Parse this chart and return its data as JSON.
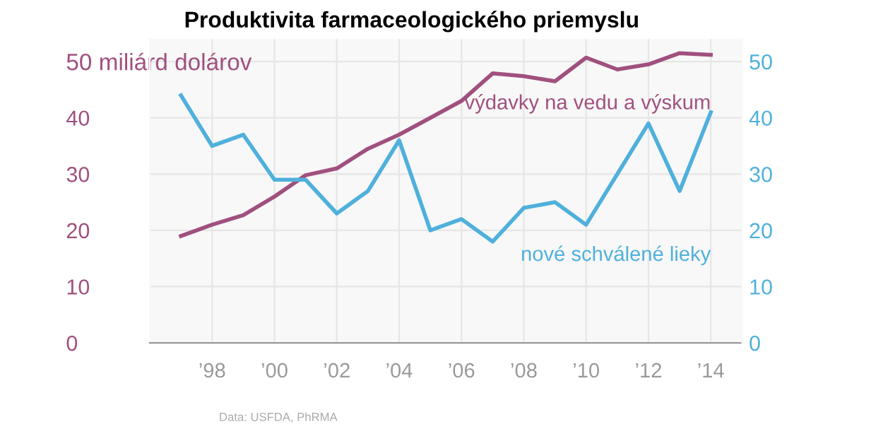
{
  "chart_data": {
    "type": "line",
    "title": "Produktivita farmaceologického priemyslu",
    "x": [
      1997,
      1998,
      1999,
      2000,
      2001,
      2002,
      2003,
      2004,
      2005,
      2006,
      2007,
      2008,
      2009,
      2010,
      2011,
      2012,
      2013,
      2014
    ],
    "series": [
      {
        "name": "výdavky na vedu a výskum",
        "color": "#a0507f",
        "values": [
          19,
          21,
          22.7,
          26,
          29.8,
          31,
          34.5,
          37,
          40,
          43,
          47.9,
          47.4,
          46.5,
          50.7,
          48.6,
          49.5,
          51.5,
          51.2
        ]
      },
      {
        "name": "nové schválené lieky",
        "color": "#4fb0dc",
        "axis": "y2",
        "values": [
          44,
          35,
          37,
          29,
          29,
          23,
          27,
          36,
          20,
          22,
          18,
          24,
          25,
          21,
          30,
          39,
          27,
          41
        ]
      }
    ],
    "xlim": [
      1996,
      2015
    ],
    "xticks": [
      {
        "value": 1998,
        "label": "’98"
      },
      {
        "value": 2000,
        "label": "’00"
      },
      {
        "value": 2002,
        "label": "’02"
      },
      {
        "value": 2004,
        "label": "’04"
      },
      {
        "value": 2006,
        "label": "’06"
      },
      {
        "value": 2008,
        "label": "’08"
      },
      {
        "value": 2010,
        "label": "’10"
      },
      {
        "value": 2012,
        "label": "’12"
      },
      {
        "value": 2014,
        "label": "’14"
      }
    ],
    "ylim": [
      0,
      54
    ],
    "yticks": [
      0,
      10,
      20,
      30,
      40,
      {
        "value": 50,
        "label": "50 miliárd dolárov"
      }
    ],
    "y2lim": [
      0,
      54
    ],
    "y2ticks": [
      0,
      10,
      20,
      30,
      40,
      50
    ],
    "grid": true,
    "legend": false,
    "annotations": [
      "Data: USFDA, PhRMA"
    ]
  }
}
